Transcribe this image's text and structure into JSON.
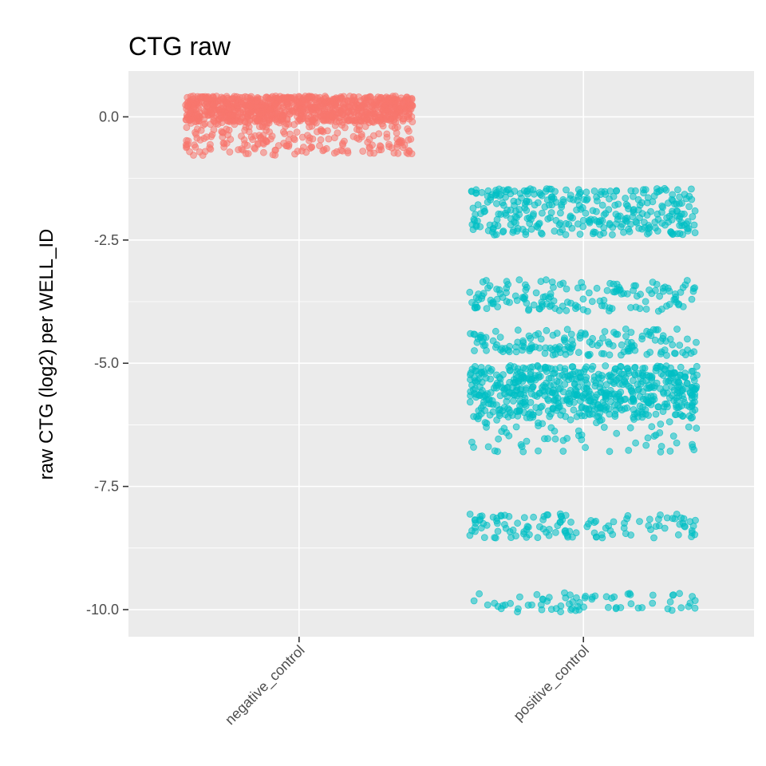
{
  "chart_data": {
    "type": "scatter",
    "title": "CTG raw",
    "xlabel": "",
    "ylabel": "raw CTG (log2) per WELL_ID",
    "categories": [
      "negative_control",
      "positive_control"
    ],
    "ylim": [
      -10.55,
      0.93
    ],
    "yticks": [
      0.0,
      -2.5,
      -5.0,
      -7.5,
      -10.0
    ],
    "ytick_labels": [
      "0.0",
      "-2.5",
      "-5.0",
      "-7.5",
      "-10.0"
    ],
    "grid": true,
    "legend": "none",
    "jitter_width": 0.4,
    "series": [
      {
        "category": "negative_control",
        "color": "#F8766D",
        "clusters": [
          {
            "y_min": -0.1,
            "y_max": 0.42,
            "count": 900
          },
          {
            "y_min": -0.78,
            "y_max": -0.1,
            "count": 220
          }
        ]
      },
      {
        "category": "positive_control",
        "color": "#00BFC4",
        "clusters": [
          {
            "y_min": -2.4,
            "y_max": -1.45,
            "count": 330
          },
          {
            "y_min": -3.95,
            "y_max": -3.3,
            "count": 150
          },
          {
            "y_min": -4.85,
            "y_max": -4.3,
            "count": 150
          },
          {
            "y_min": -6.1,
            "y_max": -5.05,
            "count": 600
          },
          {
            "y_min": -6.8,
            "y_max": -6.1,
            "count": 70
          },
          {
            "y_min": -8.55,
            "y_max": -8.05,
            "count": 120
          },
          {
            "y_min": -10.05,
            "y_max": -9.65,
            "count": 70
          }
        ]
      }
    ]
  }
}
